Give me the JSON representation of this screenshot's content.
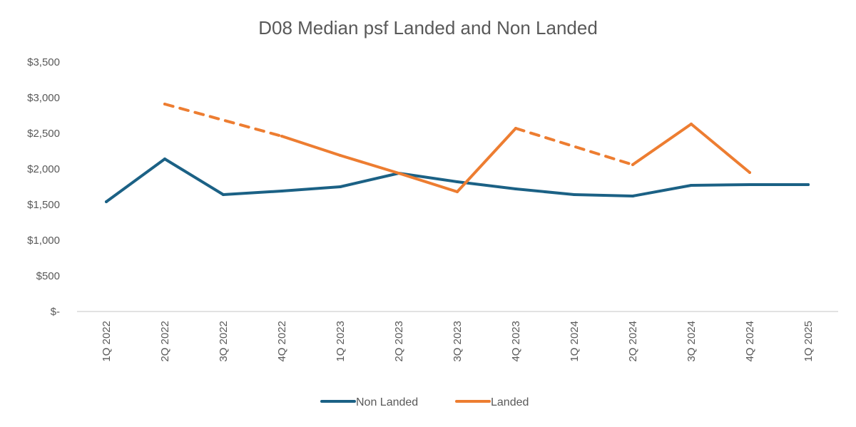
{
  "chart_data": {
    "type": "line",
    "title": "D08 Median psf Landed and Non Landed",
    "xlabel": "",
    "ylabel": "",
    "categories": [
      "1Q 2022",
      "2Q 2022",
      "3Q 2022",
      "4Q 2022",
      "1Q 2023",
      "2Q 2023",
      "3Q 2023",
      "4Q 2023",
      "1Q 2024",
      "2Q 2024",
      "3Q 2024",
      "4Q 2024",
      "1Q 2025"
    ],
    "ylim": [
      0,
      3500
    ],
    "yticks": [
      0,
      500,
      1000,
      1500,
      2000,
      2500,
      3000,
      3500
    ],
    "ytick_labels": [
      "$-",
      "$500",
      "$1,000",
      "$1,500",
      "$2,000",
      "$2,500",
      "$3,000",
      "$3,500"
    ],
    "grid": false,
    "legend_position": "bottom",
    "gap_style": "dashed connecting line across missing quarters",
    "series": [
      {
        "name": "Non Landed",
        "color": "#1b6185",
        "values": [
          1540,
          2140,
          1640,
          1690,
          1750,
          1940,
          1820,
          1720,
          1640,
          1620,
          1770,
          1780,
          1780
        ]
      },
      {
        "name": "Landed",
        "color": "#ed7d31",
        "values": [
          null,
          2910,
          null,
          2460,
          2190,
          1940,
          1680,
          2570,
          null,
          2060,
          2630,
          1950,
          null
        ]
      }
    ]
  }
}
